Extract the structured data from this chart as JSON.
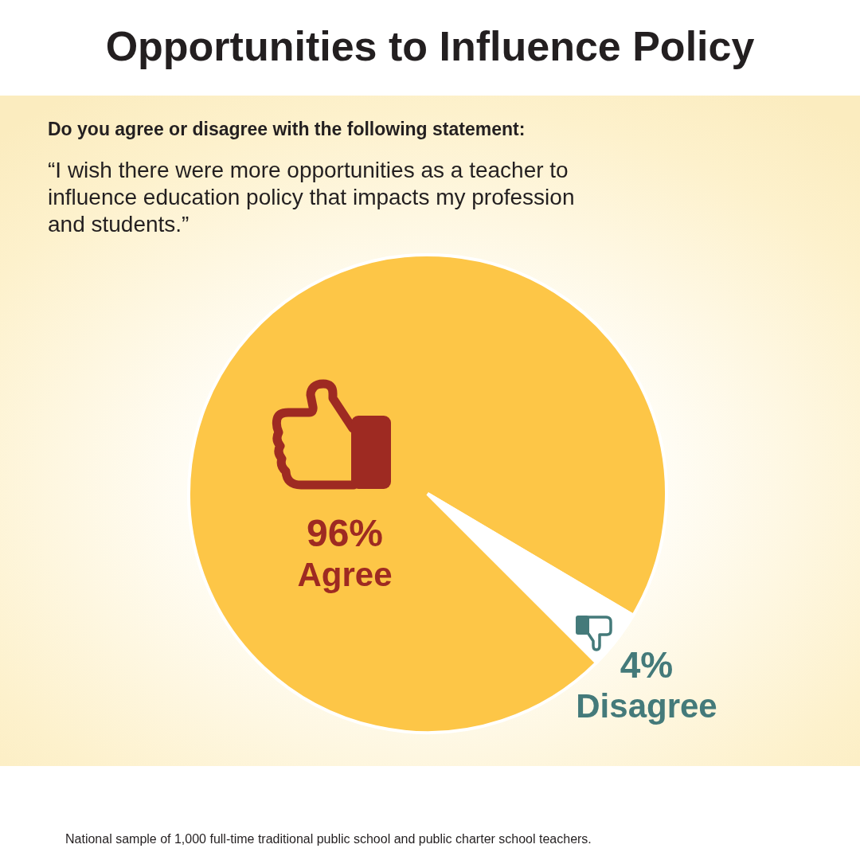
{
  "chart_data": {
    "type": "pie",
    "title": "Opportunities to Influence Policy",
    "subtitle": "Do you agree or disagree with the following statement:",
    "categories": [
      "Agree",
      "Disagree"
    ],
    "values": [
      96,
      4
    ],
    "colors": [
      "#fdc647",
      "#ffffff"
    ],
    "value_labels": [
      "96%",
      "4%"
    ],
    "annotations": [
      "“I wish there were more opportunities as a teacher to influence education policy that impacts my profession and students.”",
      "National sample of 1,000 full-time traditional public school and public charter school teachers."
    ]
  }
}
